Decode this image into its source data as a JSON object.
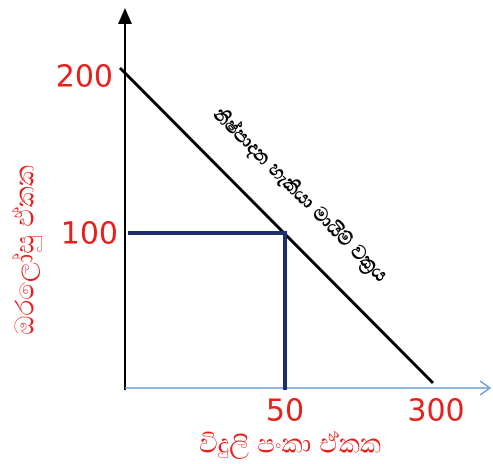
{
  "y_axis": {
    "label": "ඔරලෝසු ඒකක",
    "ticks": [
      "200",
      "100"
    ]
  },
  "x_axis": {
    "label": "විදුලි පංකා ඒකක",
    "ticks": [
      "50",
      "300"
    ]
  },
  "curve": {
    "label": "නිෂ්පාදන හැකියා මායිම් වක්‍රය"
  }
}
